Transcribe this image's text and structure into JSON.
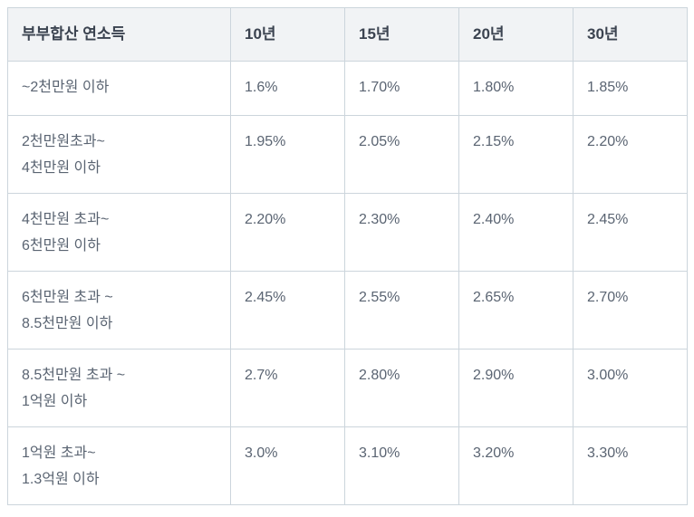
{
  "chart_data": {
    "type": "table",
    "columns": [
      "부부합산 연소득",
      "10년",
      "15년",
      "20년",
      "30년"
    ],
    "rows": [
      {
        "label": "~2천만원 이하",
        "values": [
          "1.6%",
          "1.70%",
          "1.80%",
          "1.85%"
        ]
      },
      {
        "label": "2천만원초과~\n4천만원 이하",
        "values": [
          "1.95%",
          "2.05%",
          "2.15%",
          "2.20%"
        ]
      },
      {
        "label": "4천만원 초과~\n6천만원 이하",
        "values": [
          "2.20%",
          "2.30%",
          "2.40%",
          "2.45%"
        ]
      },
      {
        "label": "6천만원 초과 ~\n8.5천만원 이하",
        "values": [
          "2.45%",
          "2.55%",
          "2.65%",
          "2.70%"
        ]
      },
      {
        "label": "8.5천만원 초과 ~\n1억원 이하",
        "values": [
          "2.7%",
          "2.80%",
          "2.90%",
          "3.00%"
        ]
      },
      {
        "label": "1억원 초과~\n1.3억원 이하",
        "values": [
          "3.0%",
          "3.10%",
          "3.20%",
          "3.30%"
        ]
      }
    ]
  },
  "colors": {
    "page_bg": "#ffffff",
    "border": "#ccd5dc",
    "header_bg": "#f1f3f5",
    "header_text": "#3b4350",
    "body_text": "#5a6472"
  }
}
